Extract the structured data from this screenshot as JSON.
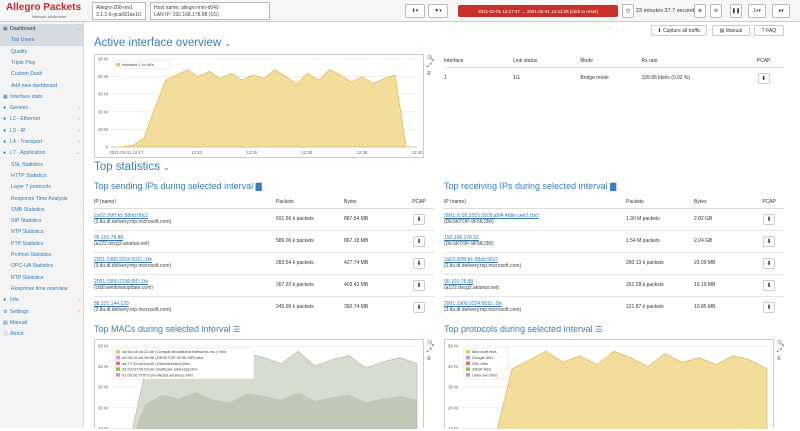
{
  "header": {
    "logo_title": "Allegro Packets",
    "logo_sub": "Network Multimeter",
    "version_line1": "Allegro-200-rev1",
    "version_line2": "3.1.2-6-gca681ae10",
    "host_line1": "Host name: allegro-mm-d040",
    "host_line2": "LAN IP: 192.168.178.88 (1G)",
    "time_range": "2021-02-01 12:17:47 → 2021-02-01 12:41:26 (click to reset)",
    "duration": "23 minutes 37.7 seconds",
    "interval": "1s"
  },
  "sidebar": [
    {
      "label": "Dashboard",
      "type": "head",
      "icon": "▣",
      "active": true,
      "chev": "⌄"
    },
    {
      "label": "Top Users",
      "type": "sub",
      "active": true
    },
    {
      "label": "Quality",
      "type": "sub"
    },
    {
      "label": "Triple Play",
      "type": "sub"
    },
    {
      "label": "Custom Dash",
      "type": "sub"
    },
    {
      "label": "Add new dashboard",
      "type": "sub"
    },
    {
      "label": "Interface stats",
      "type": "head",
      "icon": "▦"
    },
    {
      "label": "Generic",
      "type": "head",
      "icon": "●",
      "chev": "‹"
    },
    {
      "label": "L2 - Ethernet",
      "type": "head",
      "icon": "●",
      "chev": "‹"
    },
    {
      "label": "L3 - IP",
      "type": "head",
      "icon": "●",
      "chev": "‹"
    },
    {
      "label": "L4 - Transport",
      "type": "head",
      "icon": "●",
      "chev": "‹"
    },
    {
      "label": "L7 - Application",
      "type": "head",
      "icon": "●",
      "chev": "⌄"
    },
    {
      "label": "SSL Statistics",
      "type": "sub"
    },
    {
      "label": "HTTP Statistics",
      "type": "sub"
    },
    {
      "label": "Layer 7 protocols",
      "type": "sub"
    },
    {
      "label": "Response Time Analysis",
      "type": "sub"
    },
    {
      "label": "SMB Statistics",
      "type": "sub"
    },
    {
      "label": "SIP Statistics",
      "type": "sub"
    },
    {
      "label": "NTP Statistics",
      "type": "sub"
    },
    {
      "label": "PTP Statistics",
      "type": "sub"
    },
    {
      "label": "Profinet Statistics",
      "type": "sub"
    },
    {
      "label": "OPC-UA Statistics",
      "type": "sub"
    },
    {
      "label": "RTP Statistics",
      "type": "sub"
    },
    {
      "label": "Response time overview",
      "type": "sub"
    },
    {
      "label": "Info",
      "type": "head",
      "icon": "●",
      "chev": "‹"
    },
    {
      "label": "Settings",
      "type": "head",
      "icon": "⚙",
      "chev": "‹"
    },
    {
      "label": "Manual",
      "type": "head",
      "icon": "▤"
    },
    {
      "label": "About",
      "type": "head",
      "icon": "ⓘ"
    }
  ],
  "main": {
    "active_if_title": "Active interface overview",
    "capture_btn": "Capture all traffic",
    "manual_btn": "Manual",
    "faq_btn": "FAQ",
    "iface_headers": [
      "Interface",
      "Link status",
      "Mode",
      "Rx rate",
      "PCAP"
    ],
    "iface_row": [
      "1",
      "1G",
      "Bridge mode",
      "199.96 kbit/s (0.02 %)"
    ],
    "top_stats_title": "Top statistics",
    "sending_title": "Top sending IPs during selected interval",
    "receiving_title": "Top receiving IPs during selected interval",
    "macs_title": "Top MACs during selected interval",
    "protocols_title": "Top protocols during selected interval",
    "ip_headers": [
      "IP (name)",
      "Packets",
      "Bytes",
      "PCAP"
    ],
    "sending": [
      {
        "ip": "2a02:26f0:fd::58dd:90c2",
        "name": "(2.tlu.dl.delivery.mp.microsoft.com)",
        "packets": "591.56 k packets",
        "bytes": "887.54 MB"
      },
      {
        "ip": "95.101.78.88",
        "name": "(a122.dscg3.akamai.net)",
        "packets": "586.00 k packets",
        "bytes": "867.18 MB"
      },
      {
        "ip": "2001:1900:2324:5011::1fe",
        "name": "(3.tlu.dl.delivery.mp.microsoft.com)",
        "packets": "283.54 k packets",
        "bytes": "427.74 MB"
      },
      {
        "ip": "2001:1900:2336:f00::1fe",
        "name": "(ctldl.windowsupdate.com)",
        "packets": "267.92 k packets",
        "bytes": "403.43 MB"
      },
      {
        "ip": "88.221.144.129",
        "name": "(2.tlu.dl.delivery.mp.microsoft.com)",
        "packets": "245.96 k packets",
        "bytes": "360.74 MB"
      }
    ],
    "receiving": [
      {
        "ip": "2001:1c05:2515:3100:a5f4:4b8e:cee2:cbcf",
        "name": "(DESKTOP-9F5KJ3R)",
        "packets": "1.90 M packets",
        "bytes": "2.82 GB"
      },
      {
        "ip": "192.168.178.53",
        "name": "(DESKTOP-9F5KJ3R)",
        "packets": "1.54 M packets",
        "bytes": "2.24 GB"
      },
      {
        "ip": "2a02:26f0:fd::58dd:90c2",
        "name": "(2.tlu.dl.delivery.mp.microsoft.com)",
        "packets": "260.13 k packets",
        "bytes": "23.09 MB"
      },
      {
        "ip": "95.101.78.88",
        "name": "(a122.dscg3.akamai.net)",
        "packets": "261.28 k packets",
        "bytes": "19.19 MB"
      },
      {
        "ip": "2001:1900:2324:5011::1fe",
        "name": "(3.tlu.dl.delivery.mp.microsoft.com)",
        "packets": "121.87 k packets",
        "bytes": "10.85 MB"
      }
    ],
    "macs_legend": [
      "c8:5a:44:0a:21:be (Compal Broadband Networks inc.) bit/s",
      "d0:28:19:a5:9b:96 (DESKTOP-9F5KJ3R) bit/s",
      "a4:77:33:a4:ba:00 (Omnidirected) bit/s",
      "33:33:00:00:00:0e (multicast address) bit/s",
      "01:00:5e:7f:ff:fa (multicast address) bit/s"
    ],
    "protocols_legend": [
      "Microsoft bit/s",
      "Google bit/s",
      "SSL bit/s",
      "SSDP bit/s",
      "Unknown bit/s"
    ],
    "colors": {
      "accent": "#3b7dc4",
      "link": "#337ab7",
      "area": "#f0d58c",
      "area_stroke": "#d9b95a",
      "mac_area": "#c9d2c4",
      "reset": "#c9302c"
    }
  },
  "chart_data": [
    {
      "type": "area",
      "title": "",
      "series": [
        {
          "name": "Interface 1 rx bit/s",
          "values": [
            0,
            0,
            1,
            5,
            22,
            38,
            41,
            44,
            40,
            43,
            39,
            42,
            38,
            41,
            39,
            44,
            40,
            36,
            42,
            38,
            44,
            41,
            37,
            40,
            36,
            39,
            41,
            0,
            0
          ]
        }
      ],
      "x_ticks": [
        "2021-02-01 12:17",
        "12:20",
        "12:25",
        "12:30",
        "12:35",
        "12:40"
      ],
      "y_ticks": [
        "0",
        "10 M",
        "20 M",
        "30 M",
        "40 M",
        "50 M"
      ],
      "ylim": [
        0,
        50000000
      ],
      "ylabel": ""
    },
    {
      "type": "area",
      "title": "",
      "series": [
        {
          "name": "c8:5a:44:0a:21:be (Compal Broadband Networks inc.) bit/s",
          "values": [
            0,
            0,
            36,
            44,
            41,
            46,
            40,
            38,
            45,
            43,
            40,
            46,
            39,
            42,
            44,
            38,
            41,
            43,
            40
          ]
        }
      ],
      "y_ticks": [
        "0",
        "10 M",
        "20 M",
        "30 M",
        "40 M",
        "50 M"
      ],
      "ylim": [
        0,
        50000000
      ]
    },
    {
      "type": "area",
      "title": "",
      "series": [
        {
          "name": "Microsoft bit/s",
          "values": [
            0,
            0,
            5,
            36,
            40,
            44,
            39,
            42,
            38,
            44,
            41,
            37,
            43,
            39,
            41,
            38,
            42,
            40,
            36
          ]
        }
      ],
      "y_ticks": [
        "0",
        "10 M",
        "20 M",
        "30 M",
        "40 M",
        "50 M"
      ],
      "ylim": [
        0,
        50000000
      ]
    }
  ]
}
